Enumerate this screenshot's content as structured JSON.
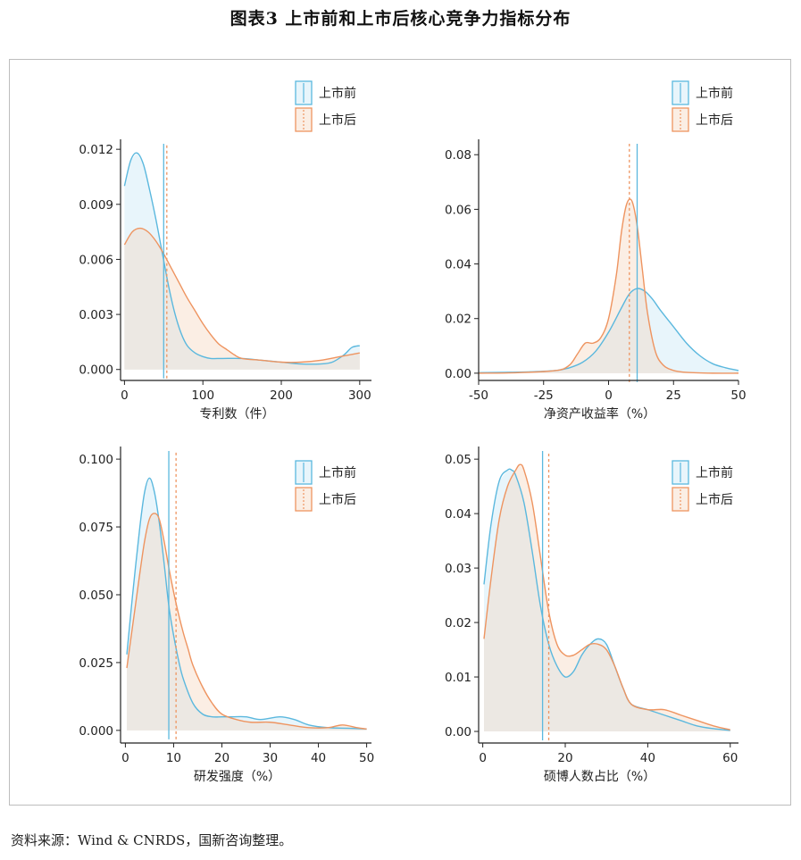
{
  "title": "图表3 上市前和上市后核心竞争力指标分布",
  "source": "资料来源：Wind & CNRDS，国新咨询整理。",
  "colors": {
    "before": "#5bb8de",
    "after": "#ee9460",
    "before_fill": "#e8f5fb",
    "after_fill": "#fbeee4",
    "overlap_fill": "#ece8e3"
  },
  "chart_data": [
    {
      "type": "area",
      "xlabel": "专利数（件）",
      "xlim": [
        -5,
        315
      ],
      "ylim": [
        -0.0005,
        0.0123
      ],
      "xticks": [
        0,
        100,
        200,
        300
      ],
      "xtick_labels": [
        "0",
        "100",
        "200",
        "300"
      ],
      "yticks": [
        0,
        0.003,
        0.006,
        0.009,
        0.012
      ],
      "ytick_labels": [
        "0.000",
        "0.003",
        "0.006",
        "0.009",
        "0.012"
      ],
      "legend": [
        "上市前",
        "上市后"
      ],
      "series": [
        {
          "name": "上市前",
          "mean": 50,
          "x": [
            0,
            8,
            16,
            24,
            32,
            40,
            48,
            56,
            64,
            72,
            80,
            90,
            100,
            110,
            125,
            150,
            175,
            200,
            225,
            250,
            265,
            280,
            290,
            300
          ],
          "y": [
            0.01,
            0.0114,
            0.0118,
            0.0112,
            0.0098,
            0.0082,
            0.0064,
            0.0046,
            0.0031,
            0.002,
            0.0013,
            0.0009,
            0.0007,
            0.0006,
            0.0006,
            0.0006,
            0.0005,
            0.0004,
            0.0003,
            0.0003,
            0.0004,
            0.0008,
            0.0012,
            0.0013
          ]
        },
        {
          "name": "上市后",
          "mean": 54,
          "x": [
            0,
            10,
            20,
            30,
            40,
            50,
            60,
            70,
            80,
            90,
            100,
            110,
            120,
            130,
            140,
            150,
            175,
            200,
            225,
            250,
            275,
            300
          ],
          "y": [
            0.0068,
            0.0075,
            0.0077,
            0.0075,
            0.007,
            0.0063,
            0.0055,
            0.0047,
            0.0039,
            0.0032,
            0.0025,
            0.0019,
            0.0014,
            0.0011,
            0.0008,
            0.0006,
            0.0005,
            0.0004,
            0.0004,
            0.0005,
            0.0007,
            0.0009
          ]
        }
      ]
    },
    {
      "type": "area",
      "xlabel": "净资产收益率（%）",
      "xlim": [
        -50,
        50
      ],
      "ylim": [
        -0.002,
        0.084
      ],
      "xticks": [
        -50,
        -25,
        0,
        25,
        50
      ],
      "xtick_labels": [
        "-50",
        "-25",
        "0",
        "25",
        "50"
      ],
      "yticks": [
        0,
        0.02,
        0.04,
        0.06,
        0.08
      ],
      "ytick_labels": [
        "0.00",
        "0.02",
        "0.04",
        "0.06",
        "0.08"
      ],
      "legend": [
        "上市前",
        "上市后"
      ],
      "series": [
        {
          "name": "上市前",
          "mean": 11,
          "x": [
            -50,
            -40,
            -30,
            -20,
            -15,
            -10,
            -5,
            0,
            5,
            8,
            11,
            14,
            17,
            20,
            25,
            30,
            35,
            40,
            45,
            50
          ],
          "y": [
            0.0002,
            0.0003,
            0.0005,
            0.001,
            0.002,
            0.004,
            0.008,
            0.015,
            0.024,
            0.029,
            0.031,
            0.03,
            0.027,
            0.023,
            0.017,
            0.011,
            0.0065,
            0.0035,
            0.002,
            0.001
          ]
        },
        {
          "name": "上市后",
          "mean": 8,
          "x": [
            -50,
            -35,
            -20,
            -15,
            -12,
            -9,
            -6,
            -3,
            0,
            3,
            5,
            7,
            9,
            11,
            13,
            15,
            18,
            21,
            25,
            30,
            40,
            50
          ],
          "y": [
            0.0,
            0.0002,
            0.001,
            0.003,
            0.007,
            0.011,
            0.011,
            0.013,
            0.02,
            0.036,
            0.052,
            0.062,
            0.063,
            0.054,
            0.038,
            0.022,
            0.008,
            0.003,
            0.001,
            0.0003,
            0.0,
            0.0
          ]
        }
      ]
    },
    {
      "type": "area",
      "xlabel": "研发强度（%）",
      "xlim": [
        -1,
        51
      ],
      "ylim": [
        -0.004,
        0.103
      ],
      "xticks": [
        0,
        10,
        20,
        30,
        40,
        50
      ],
      "xtick_labels": [
        "0",
        "10",
        "20",
        "30",
        "40",
        "50"
      ],
      "yticks": [
        0,
        0.025,
        0.05,
        0.075,
        0.1
      ],
      "ytick_labels": [
        "0.000",
        "0.025",
        "0.050",
        "0.075",
        "0.100"
      ],
      "legend": [
        "上市前",
        "上市后"
      ],
      "series": [
        {
          "name": "上市前",
          "mean": 9,
          "x": [
            0.3,
            1.5,
            3,
            4,
            5,
            6,
            7,
            8,
            9,
            10,
            11,
            12,
            14,
            16,
            18,
            20,
            22,
            25,
            28,
            32,
            35,
            38,
            42,
            46,
            50
          ],
          "y": [
            0.028,
            0.05,
            0.075,
            0.088,
            0.093,
            0.088,
            0.077,
            0.062,
            0.046,
            0.035,
            0.026,
            0.019,
            0.01,
            0.006,
            0.005,
            0.005,
            0.005,
            0.005,
            0.004,
            0.005,
            0.004,
            0.002,
            0.001,
            0.0008,
            0.0005
          ]
        },
        {
          "name": "上市后",
          "mean": 10.5,
          "x": [
            0.3,
            2,
            3,
            4,
            5,
            6,
            7,
            8,
            9,
            10,
            11,
            12,
            13,
            14,
            16,
            18,
            20,
            23,
            26,
            30,
            34,
            38,
            42,
            45,
            48,
            50
          ],
          "y": [
            0.023,
            0.045,
            0.058,
            0.07,
            0.078,
            0.08,
            0.078,
            0.07,
            0.06,
            0.051,
            0.043,
            0.036,
            0.03,
            0.024,
            0.016,
            0.01,
            0.006,
            0.004,
            0.003,
            0.003,
            0.002,
            0.001,
            0.001,
            0.002,
            0.001,
            0.0005
          ]
        }
      ]
    },
    {
      "type": "area",
      "xlabel": "硕博人数占比（%）",
      "xlim": [
        -1,
        62
      ],
      "ylim": [
        -0.0018,
        0.0515
      ],
      "xticks": [
        0,
        20,
        40,
        60
      ],
      "xtick_labels": [
        "0",
        "20",
        "40",
        "60"
      ],
      "yticks": [
        0,
        0.01,
        0.02,
        0.03,
        0.04,
        0.05
      ],
      "ytick_labels": [
        "0.00",
        "0.01",
        "0.02",
        "0.03",
        "0.04",
        "0.05"
      ],
      "legend": [
        "上市前",
        "上市后"
      ],
      "series": [
        {
          "name": "上市前",
          "mean": 14.5,
          "x": [
            0.3,
            2,
            4,
            6,
            7,
            8,
            10,
            12,
            14,
            16,
            18,
            20,
            22,
            24,
            26,
            28,
            30,
            32,
            34,
            36,
            40,
            44,
            48,
            52,
            56,
            60
          ],
          "y": [
            0.027,
            0.038,
            0.046,
            0.048,
            0.048,
            0.047,
            0.042,
            0.033,
            0.023,
            0.016,
            0.012,
            0.01,
            0.011,
            0.014,
            0.016,
            0.017,
            0.016,
            0.012,
            0.008,
            0.005,
            0.004,
            0.003,
            0.002,
            0.001,
            0.0005,
            0.0002
          ]
        },
        {
          "name": "上市后",
          "mean": 16,
          "x": [
            0.3,
            2,
            4,
            6,
            8,
            9,
            10,
            12,
            14,
            16,
            18,
            20,
            22,
            24,
            26,
            28,
            30,
            32,
            34,
            36,
            40,
            44,
            48,
            52,
            56,
            60
          ],
          "y": [
            0.017,
            0.028,
            0.039,
            0.045,
            0.048,
            0.049,
            0.048,
            0.042,
            0.032,
            0.022,
            0.016,
            0.014,
            0.014,
            0.015,
            0.016,
            0.016,
            0.015,
            0.012,
            0.008,
            0.005,
            0.004,
            0.004,
            0.003,
            0.002,
            0.001,
            0.0003
          ]
        }
      ]
    }
  ]
}
